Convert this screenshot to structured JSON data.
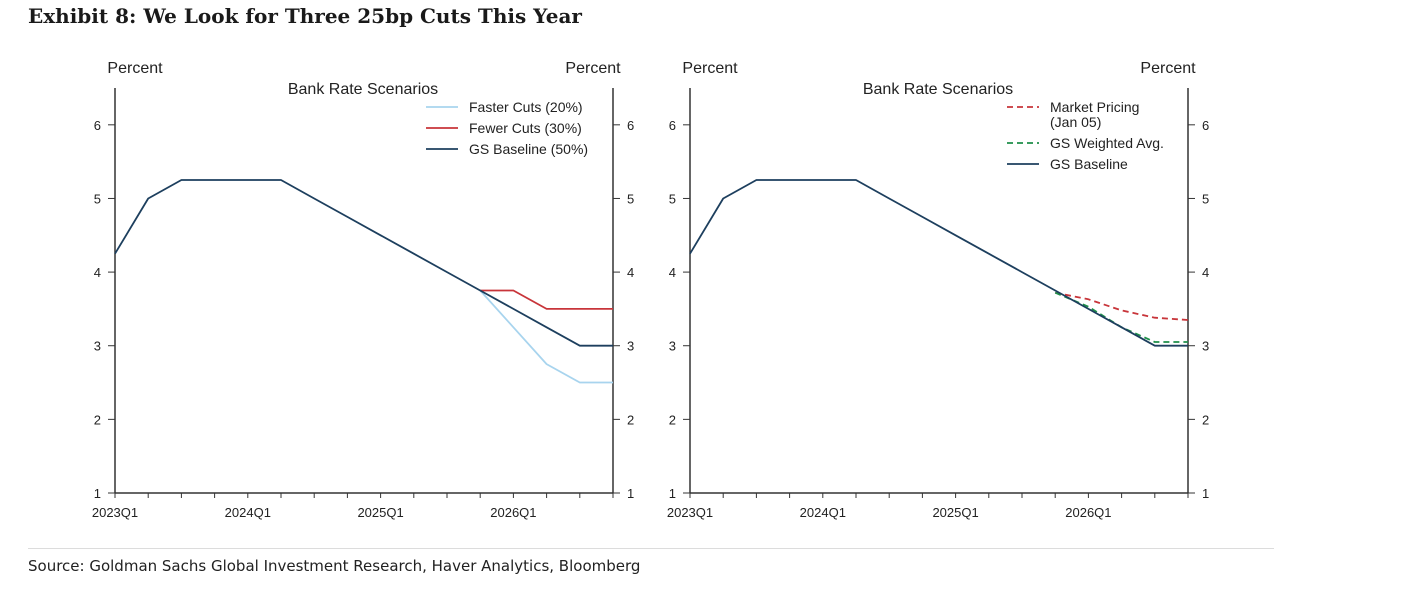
{
  "exhibit": {
    "title": "Exhibit 8: We Look for Three 25bp Cuts This Year",
    "source": "Source: Goldman Sachs Global Investment Research, Haver Analytics, Bloomberg"
  },
  "colors": {
    "baseline": "#1d3f5e",
    "fewer_cuts": "#c8353a",
    "faster_cuts": "#a8d4ee",
    "market_pricing": "#c8353a",
    "weighted_avg": "#1e8f4a"
  },
  "chart_data": [
    {
      "type": "line",
      "title": "Bank Rate Scenarios",
      "ylabel_left": "Percent",
      "ylabel_right": "Percent",
      "ylim": [
        1,
        6.5
      ],
      "yticks": [
        "1",
        "2",
        "3",
        "4",
        "5",
        "6"
      ],
      "xticks": [
        "2023Q1",
        "2024Q1",
        "2025Q1",
        "2026Q1"
      ],
      "x_unit": "year",
      "xlim": [
        2023.0,
        2026.75
      ],
      "legend_position": "top-right",
      "grid": false,
      "series": [
        {
          "name": "Faster Cuts (20%)",
          "color_key": "faster_cuts",
          "dash": false,
          "x": [
            2025.75,
            2026.0,
            2026.25,
            2026.5,
            2026.75
          ],
          "y": [
            3.75,
            3.25,
            2.75,
            2.5,
            2.5
          ]
        },
        {
          "name": "Fewer Cuts (30%)",
          "color_key": "fewer_cuts",
          "dash": false,
          "x": [
            2025.75,
            2026.0,
            2026.25,
            2026.5,
            2026.75
          ],
          "y": [
            3.75,
            3.75,
            3.5,
            3.5,
            3.5
          ]
        },
        {
          "name": "GS Baseline (50%)",
          "color_key": "baseline",
          "dash": false,
          "x": [
            2023.0,
            2023.25,
            2023.5,
            2023.75,
            2024.0,
            2024.25,
            2024.5,
            2024.75,
            2025.0,
            2025.25,
            2025.5,
            2025.75,
            2026.0,
            2026.25,
            2026.5,
            2026.75
          ],
          "y": [
            4.25,
            5.0,
            5.25,
            5.25,
            5.25,
            5.25,
            5.0,
            4.75,
            4.5,
            4.25,
            4.0,
            3.75,
            3.5,
            3.25,
            3.0,
            3.0
          ]
        }
      ]
    },
    {
      "type": "line",
      "title": "Bank Rate Scenarios",
      "ylabel_left": "Percent",
      "ylabel_right": "Percent",
      "ylim": [
        1,
        6.5
      ],
      "yticks": [
        "1",
        "2",
        "3",
        "4",
        "5",
        "6"
      ],
      "xticks": [
        "2023Q1",
        "2024Q1",
        "2025Q1",
        "2026Q1"
      ],
      "x_unit": "year",
      "xlim": [
        2023.0,
        2026.75
      ],
      "legend_position": "top-right",
      "grid": false,
      "series": [
        {
          "name": [
            "Market Pricing",
            "(Jan 05)"
          ],
          "color_key": "market_pricing",
          "dash": true,
          "x": [
            2025.75,
            2026.0,
            2026.25,
            2026.5,
            2026.75
          ],
          "y": [
            3.72,
            3.63,
            3.48,
            3.38,
            3.35
          ]
        },
        {
          "name": [
            "GS Weighted Avg."
          ],
          "color_key": "weighted_avg",
          "dash": true,
          "x": [
            2025.75,
            2026.0,
            2026.25,
            2026.5,
            2026.75
          ],
          "y": [
            3.72,
            3.53,
            3.25,
            3.05,
            3.05
          ]
        },
        {
          "name": [
            "GS Baseline"
          ],
          "color_key": "baseline",
          "dash": false,
          "x": [
            2023.0,
            2023.25,
            2023.5,
            2023.75,
            2024.0,
            2024.25,
            2024.5,
            2024.75,
            2025.0,
            2025.25,
            2025.5,
            2025.75,
            2026.0,
            2026.25,
            2026.5,
            2026.75
          ],
          "y": [
            4.25,
            5.0,
            5.25,
            5.25,
            5.25,
            5.25,
            5.0,
            4.75,
            4.5,
            4.25,
            4.0,
            3.75,
            3.5,
            3.25,
            3.0,
            3.0
          ]
        }
      ]
    }
  ]
}
